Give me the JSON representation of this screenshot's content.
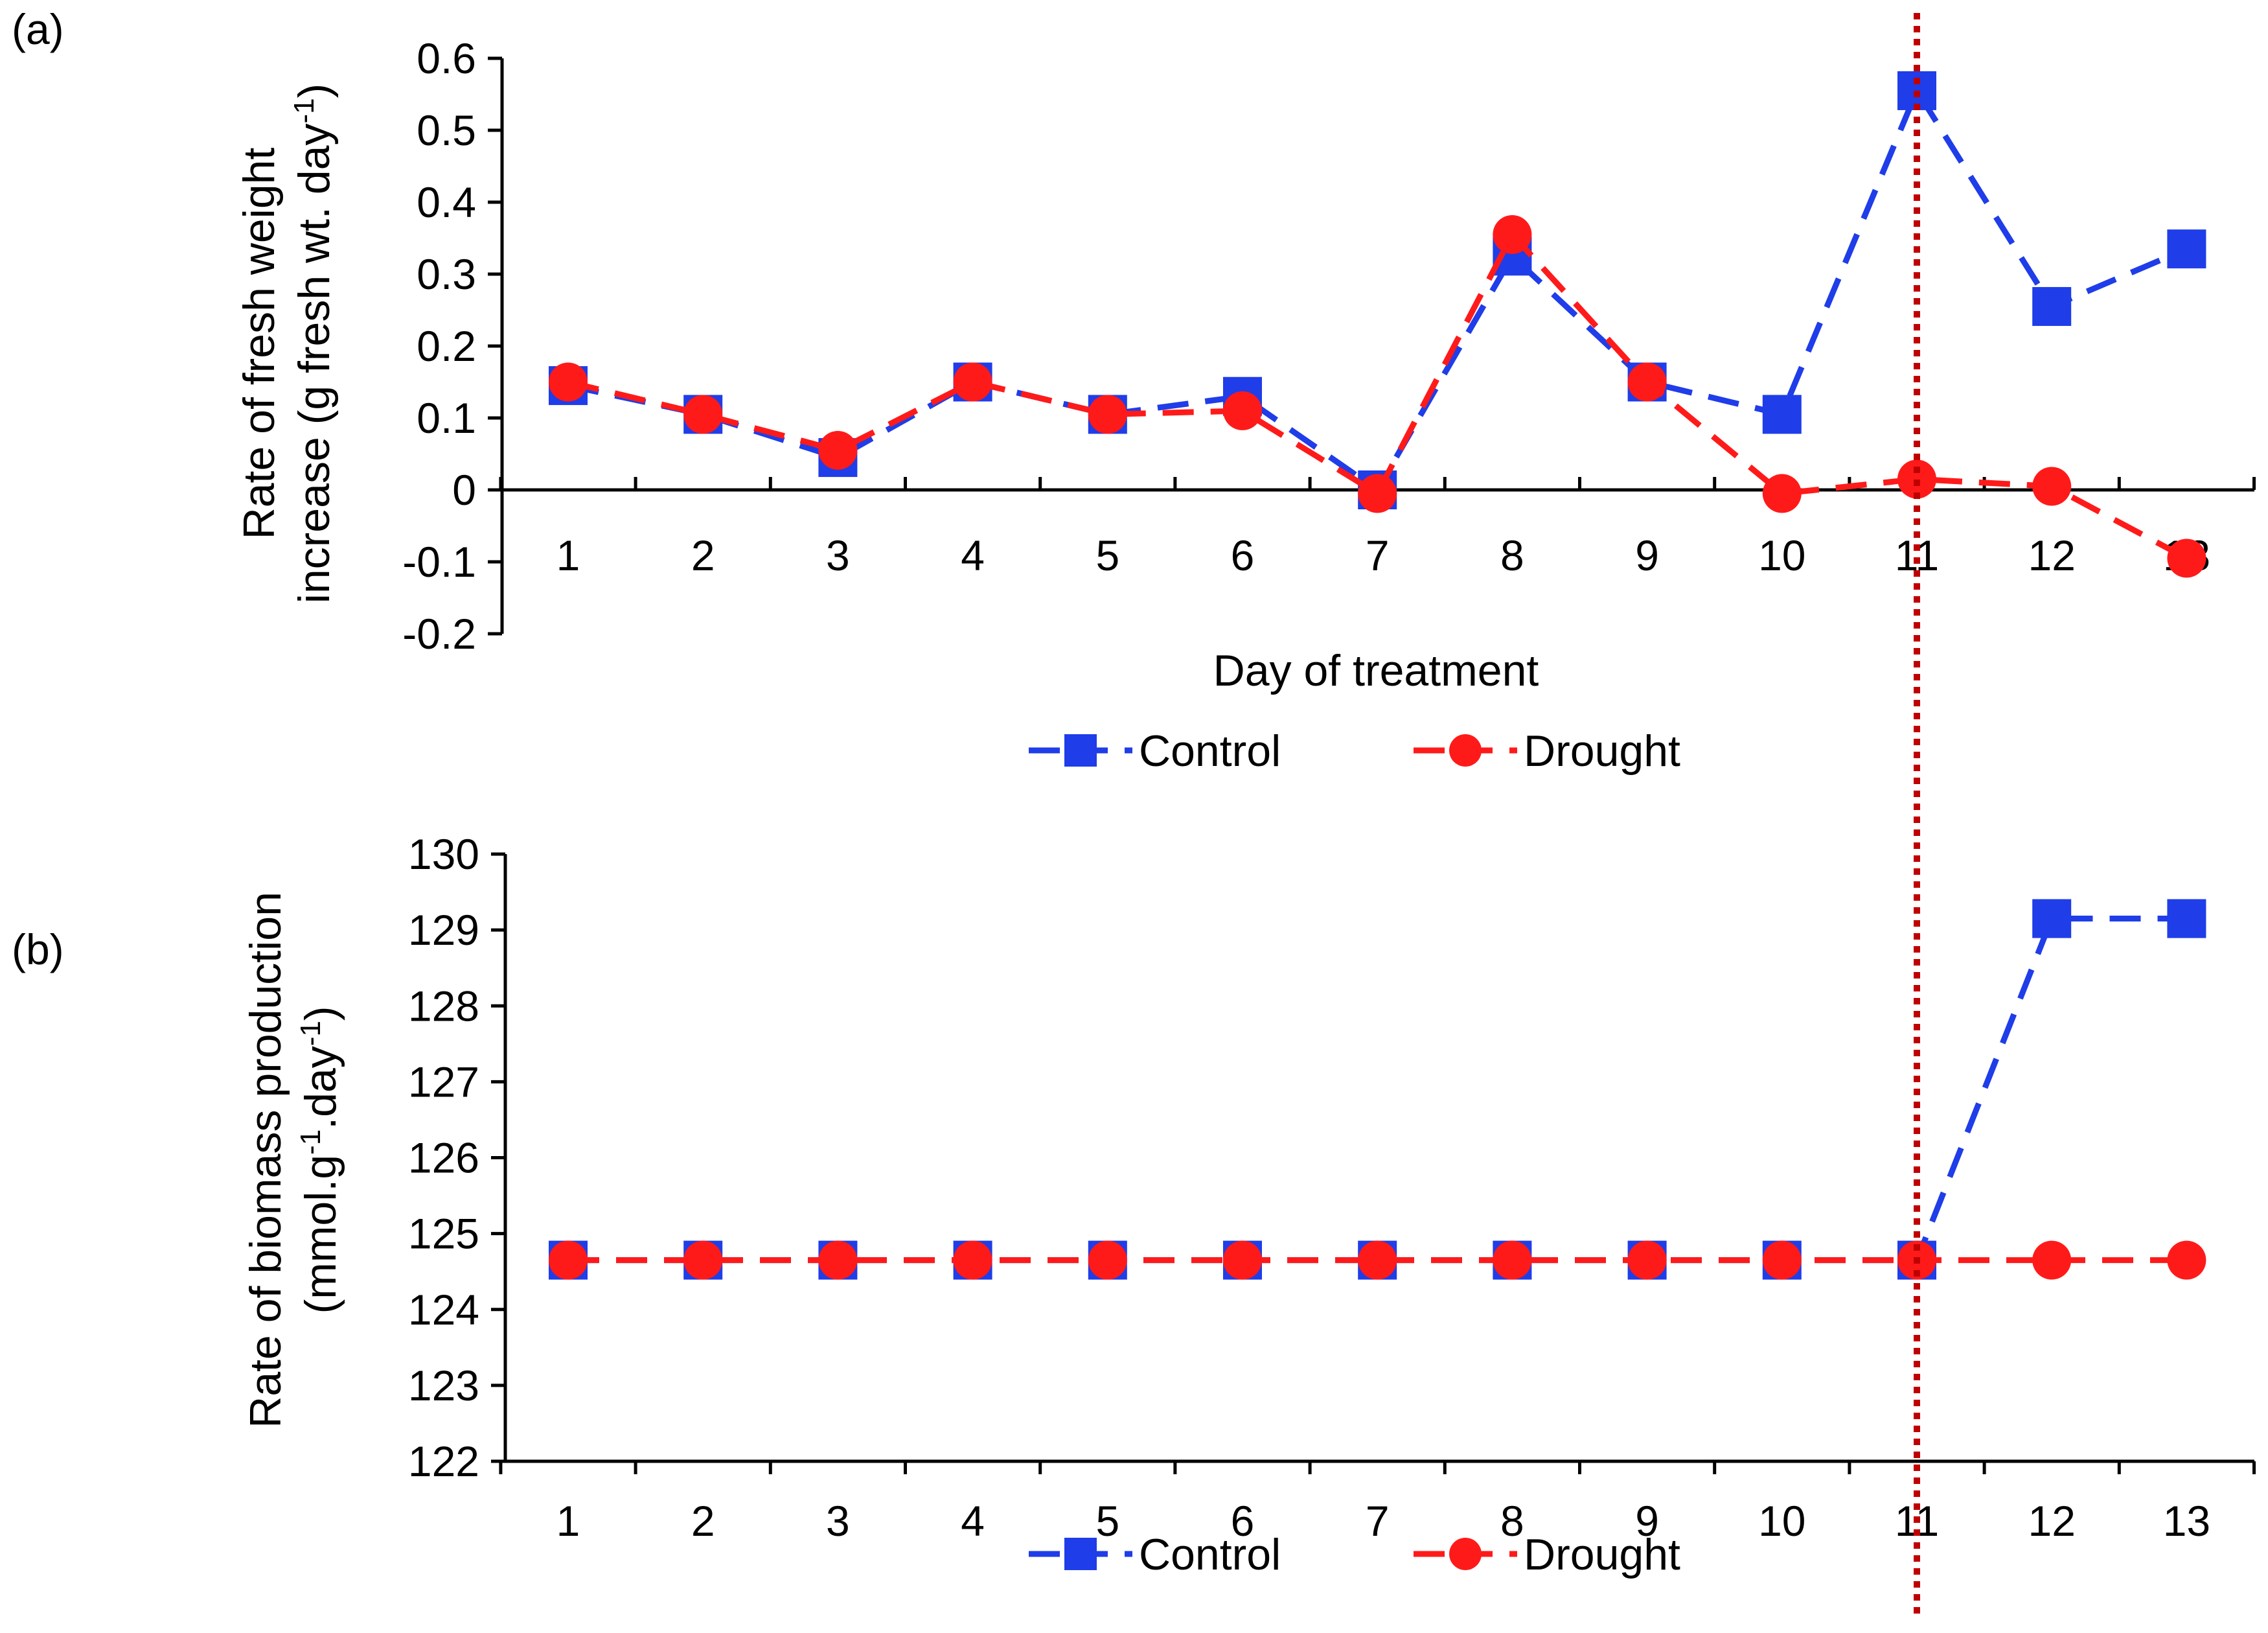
{
  "figure": {
    "colors": {
      "control": "#1f3de8",
      "drought": "#ff1a1a",
      "day11_marker": "#c00000",
      "axis": "#000000"
    },
    "day11_marker": {
      "x": 11,
      "style": "dotted"
    }
  },
  "chart_data": [
    {
      "type": "line",
      "panel_label": "(a)",
      "title": "",
      "xlabel": "Day of treatment",
      "ylabel_lines": [
        "Rate of fresh weight",
        "increase (g fresh wt. day"
      ],
      "ylabel_superscript": "-1",
      "ylabel_suffix": ")",
      "x": [
        1,
        2,
        3,
        4,
        5,
        6,
        7,
        8,
        9,
        10,
        11,
        12,
        13
      ],
      "x_tick_labels": [
        "1",
        "2",
        "3",
        "4",
        "5",
        "6",
        "7",
        "8",
        "9",
        "10",
        "11",
        "12",
        "13"
      ],
      "ylim": [
        -0.2,
        0.6
      ],
      "y_ticks": [
        -0.2,
        -0.1,
        0,
        0.1,
        0.2,
        0.3,
        0.4,
        0.5,
        0.6
      ],
      "y_tick_labels": [
        "-0.2",
        "-0.1",
        "0",
        "0.1",
        "0.2",
        "0.3",
        "0.4",
        "0.5",
        "0.6"
      ],
      "x_axis_at": 0,
      "series": [
        {
          "name": "Control",
          "marker": "square",
          "line": "dashed",
          "values": [
            0.145,
            0.105,
            0.045,
            0.15,
            0.105,
            0.13,
            0.0,
            0.325,
            0.15,
            0.105,
            0.555,
            0.255,
            0.335
          ]
        },
        {
          "name": "Drought",
          "marker": "circle",
          "line": "dashed",
          "values": [
            0.15,
            0.105,
            0.055,
            0.15,
            0.105,
            0.11,
            -0.005,
            0.355,
            0.15,
            -0.005,
            0.015,
            0.005,
            -0.095
          ]
        }
      ],
      "legend": {
        "position": "bottom",
        "entries": [
          "Control",
          "Drought"
        ]
      }
    },
    {
      "type": "line",
      "panel_label": "(b)",
      "title": "",
      "xlabel": "",
      "ylabel_lines": [
        "Rate of biomass production",
        "(mmol.g"
      ],
      "ylabel_superscripts": [
        "-1",
        "-1"
      ],
      "ylabel_middle": ".day",
      "ylabel_suffix": ")",
      "x": [
        1,
        2,
        3,
        4,
        5,
        6,
        7,
        8,
        9,
        10,
        11,
        12,
        13
      ],
      "x_tick_labels": [
        "1",
        "2",
        "3",
        "4",
        "5",
        "6",
        "7",
        "8",
        "9",
        "10",
        "11",
        "12",
        "13"
      ],
      "ylim": [
        122,
        130
      ],
      "y_ticks": [
        122,
        123,
        124,
        125,
        126,
        127,
        128,
        129,
        130
      ],
      "y_tick_labels": [
        "122",
        "123",
        "124",
        "125",
        "126",
        "127",
        "128",
        "129",
        "130"
      ],
      "series": [
        {
          "name": "Control",
          "marker": "square",
          "line": "dashed",
          "values": [
            124.65,
            124.65,
            124.65,
            124.65,
            124.65,
            124.65,
            124.65,
            124.65,
            124.65,
            124.65,
            124.65,
            129.15,
            129.15
          ]
        },
        {
          "name": "Drought",
          "marker": "circle",
          "line": "dashed",
          "values": [
            124.65,
            124.65,
            124.65,
            124.65,
            124.65,
            124.65,
            124.65,
            124.65,
            124.65,
            124.65,
            124.65,
            124.65,
            124.65
          ]
        }
      ],
      "legend": {
        "position": "bottom",
        "entries": [
          "Control",
          "Drought"
        ]
      }
    }
  ]
}
